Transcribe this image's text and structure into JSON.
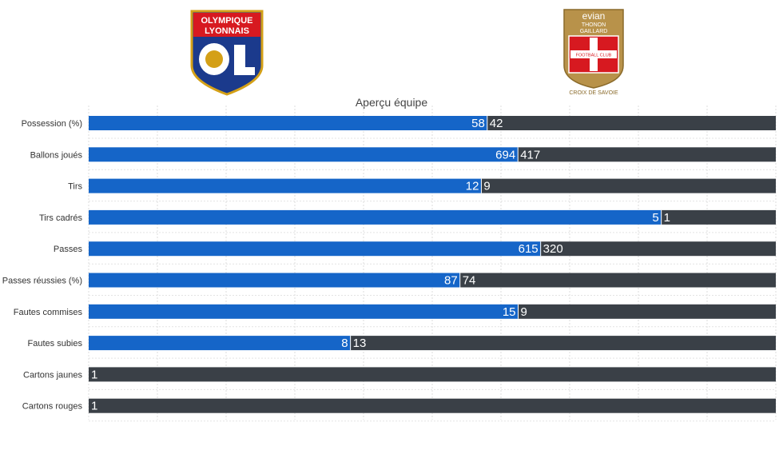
{
  "teams": {
    "home": {
      "logo_text_1": "OLYMPIQUE",
      "logo_text_2": "LYONNAIS",
      "color": "#1565c8"
    },
    "away": {
      "logo_text_1": "evian",
      "logo_text_2": "THONON",
      "logo_text_3": "GAILLARD",
      "logo_text_4": "FOOTBALL CLUB",
      "logo_text_5": "CROIX DE SAVOIE",
      "color": "#3a4047"
    }
  },
  "chart_data": {
    "type": "bar",
    "orientation": "horizontal",
    "stacked": "percent",
    "title": "Aperçu équipe",
    "categories": [
      "Possession (%)",
      "Ballons joués",
      "Tirs",
      "Tirs cadrés",
      "Passes",
      "Passes réussies (%)",
      "Fautes commises",
      "Fautes subies",
      "Cartons jaunes",
      "Cartons rouges"
    ],
    "series": [
      {
        "values": [
          58,
          694,
          12,
          5,
          615,
          87,
          15,
          8,
          0,
          0
        ],
        "color": "#1565c8"
      },
      {
        "values": [
          42,
          417,
          9,
          1,
          320,
          74,
          9,
          13,
          1,
          1
        ],
        "color": "#3a4047"
      }
    ],
    "grid": true,
    "legend": "none"
  }
}
